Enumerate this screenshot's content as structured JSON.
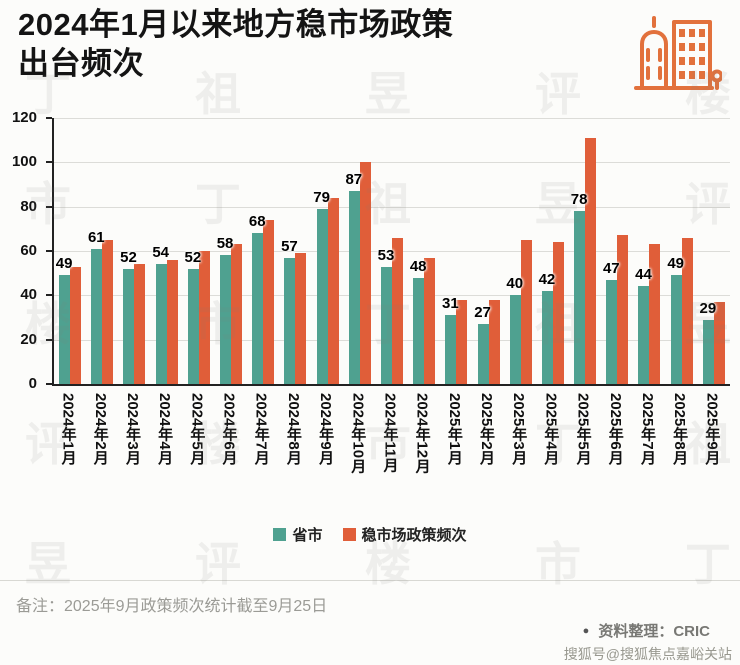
{
  "header": {
    "title_line1": "2024年1月以来地方稳市场政策",
    "title_line2": "出台频次"
  },
  "chart_data": {
    "type": "bar",
    "title": "2024年1月以来地方稳市场政策出台频次",
    "categories": [
      "2024年1月",
      "2024年2月",
      "2024年3月",
      "2024年4月",
      "2024年5月",
      "2024年6月",
      "2024年7月",
      "2024年8月",
      "2024年9月",
      "2024年10月",
      "2024年11月",
      "2024年12月",
      "2025年1月",
      "2025年2月",
      "2025年3月",
      "2025年4月",
      "2025年5月",
      "2025年6月",
      "2025年7月",
      "2025年8月",
      "2025年9月"
    ],
    "series": [
      {
        "name": "省市",
        "color": "#4FA190",
        "values": [
          49,
          61,
          52,
          54,
          52,
          58,
          68,
          57,
          79,
          87,
          53,
          48,
          31,
          27,
          40,
          42,
          78,
          47,
          44,
          49,
          29
        ],
        "data_labels": true
      },
      {
        "name": "稳市场政策频次",
        "color": "#E05E39",
        "values": [
          53,
          65,
          54,
          56,
          60,
          63,
          74,
          59,
          84,
          100,
          66,
          57,
          38,
          38,
          65,
          64,
          111,
          67,
          63,
          66,
          37
        ],
        "data_labels": false
      }
    ],
    "ylim": [
      0,
      120
    ],
    "ytick_step": 20,
    "grid": true,
    "legend_position": "bottom"
  },
  "footer": {
    "note": "备注：2025年9月政策频次统计截至9月25日",
    "source_bullet": "●",
    "source_label": "资料整理：CRIC",
    "account": "搜狐号@搜狐焦点嘉峪关站"
  },
  "watermark": {
    "chars": [
      "丁",
      "祖",
      "昱",
      "评",
      "楼",
      "市"
    ]
  },
  "icon": {
    "name": "city-buildings",
    "color": "#E2713C"
  }
}
